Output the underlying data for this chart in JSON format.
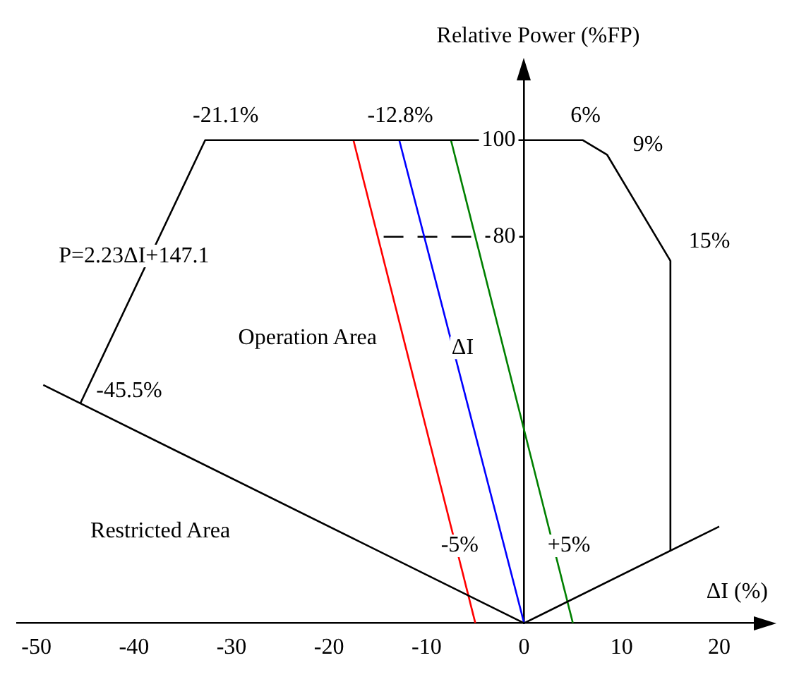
{
  "chart_data": {
    "type": "line",
    "xlabel": "ΔI (%)",
    "ylabel": "Relative Power (%FP)",
    "xlim": [
      -52,
      25
    ],
    "xticks": [
      -50,
      -40,
      -30,
      -20,
      -10,
      0,
      10,
      20
    ],
    "ylim": [
      0,
      115
    ],
    "yticks": [
      80,
      100
    ],
    "grid": false,
    "legend": false,
    "marker": "none",
    "series": [
      {
        "color": "#000000",
        "x": [
          -45.5,
          -32.7,
          6,
          8.5,
          15,
          15
        ],
        "values": [
          45.5,
          100,
          100,
          97,
          75,
          15
        ]
      },
      {
        "color": "#000000",
        "x": [
          -49.3,
          0,
          20
        ],
        "values": [
          49.3,
          0,
          20
        ]
      },
      {
        "color": "#ff0000",
        "x": [
          -17.5,
          -5
        ],
        "values": [
          100,
          0
        ]
      },
      {
        "color": "#0000ff",
        "x": [
          -12.8,
          0
        ],
        "values": [
          100,
          0
        ]
      },
      {
        "color": "#008000",
        "x": [
          -7.5,
          5
        ],
        "values": [
          100,
          0
        ]
      },
      {
        "color": "#000000",
        "x": [
          -14.4,
          0
        ],
        "values": [
          80,
          80
        ],
        "line_style": "dashed"
      }
    ],
    "annotations": [
      "P=2.23ΔI+147.1",
      "Operation Area",
      "Restricted Area",
      "ΔI",
      "-21.1%",
      "-12.8%",
      "6%",
      "9%",
      "15%",
      "-45.5%",
      "-5%",
      "+5%"
    ]
  }
}
